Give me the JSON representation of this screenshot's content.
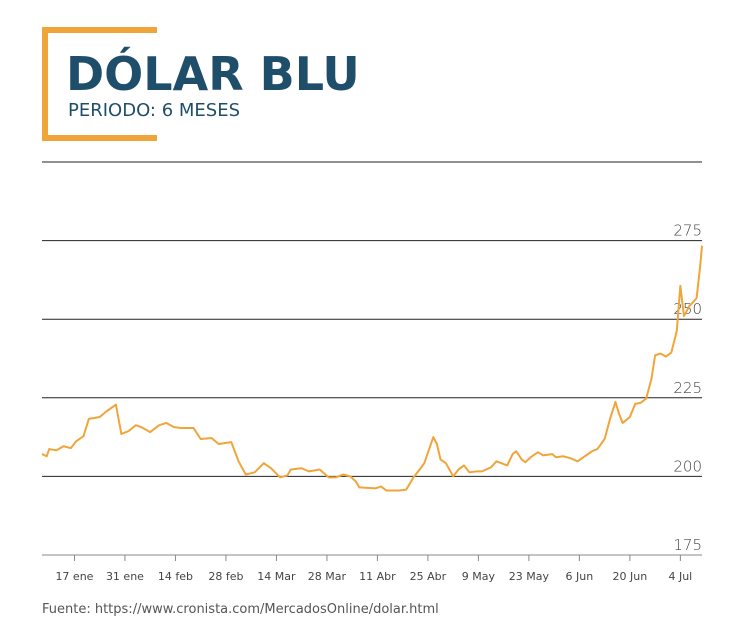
{
  "chart_data": {
    "type": "line",
    "title": "DÓLAR BLU",
    "subtitle": "PERIODO: 6 MESES",
    "source": "Fuente: https://www.cronista.com/MercadosOnline/dolar.html",
    "color": "#f0a53a",
    "x": [
      8,
      9.3,
      10,
      12,
      14,
      16,
      17.5,
      19.5,
      21,
      24,
      26,
      28.5,
      30,
      32,
      34,
      35.5,
      38,
      40.5,
      42.5,
      44.5,
      46.5,
      50,
      52,
      55,
      57,
      60.5,
      62.5,
      64.5,
      67,
      69.5,
      71.5,
      74,
      76,
      77,
      80,
      82,
      85,
      87.5,
      89.5,
      91.5,
      93.5,
      95,
      96,
      100.5,
      102,
      103.5,
      107,
      109,
      111,
      113,
      114,
      116.5,
      117.5,
      118.5,
      120,
      122,
      123.5,
      125,
      126.5,
      128.5,
      130,
      132.5,
      134,
      137,
      138.5,
      139.5,
      141,
      142,
      143.5,
      145.5,
      147,
      149.5,
      150.5,
      152.5,
      154.5,
      156.5,
      158.5,
      160.5,
      162,
      164,
      165.5,
      167,
      168,
      169,
      171,
      172.5,
      174,
      175.5,
      177,
      178,
      179.5,
      181,
      182.5,
      184,
      185,
      186,
      187.5,
      188.5,
      189.5,
      190.5,
      191
    ],
    "values": [
      207.1,
      206.4,
      208.7,
      208.3,
      209.6,
      209.0,
      211.2,
      212.8,
      218.3,
      218.9,
      220.8,
      222.8,
      213.5,
      214.4,
      216.3,
      215.7,
      214.1,
      216.3,
      217.0,
      215.7,
      215.4,
      215.4,
      211.9,
      212.2,
      210.3,
      210.9,
      204.8,
      200.6,
      201.3,
      204.2,
      202.6,
      199.7,
      200.3,
      202.2,
      202.6,
      201.6,
      202.2,
      199.7,
      199.7,
      200.6,
      200.0,
      198.4,
      196.5,
      196.2,
      196.8,
      195.5,
      195.5,
      195.8,
      199.7,
      202.6,
      204.2,
      212.5,
      210.3,
      205.4,
      204.2,
      200.0,
      202.2,
      203.5,
      201.3,
      201.6,
      201.6,
      202.9,
      204.8,
      203.5,
      207.1,
      208.0,
      205.4,
      204.5,
      206.1,
      207.7,
      206.7,
      207.1,
      206.1,
      206.4,
      205.8,
      204.8,
      206.4,
      208.0,
      208.7,
      211.9,
      218.3,
      223.7,
      219.9,
      217.0,
      218.9,
      223.1,
      223.4,
      224.7,
      231.1,
      238.5,
      239.1,
      238.1,
      239.4,
      246.2,
      260.6,
      251.0,
      254.2,
      255.4,
      256.7,
      267.0,
      273.4
    ],
    "xlim": [
      8,
      191
    ],
    "xticks": [
      {
        "value": 17,
        "label": "17 ene"
      },
      {
        "value": 31,
        "label": "31 ene"
      },
      {
        "value": 45,
        "label": "14 feb"
      },
      {
        "value": 59,
        "label": "28 feb"
      },
      {
        "value": 73,
        "label": "14 Mar"
      },
      {
        "value": 87,
        "label": "28 Mar"
      },
      {
        "value": 101,
        "label": "11 Abr"
      },
      {
        "value": 115,
        "label": "25 Abr"
      },
      {
        "value": 129,
        "label": "9 May"
      },
      {
        "value": 143,
        "label": "23 May"
      },
      {
        "value": 157,
        "label": "6 Jun"
      },
      {
        "value": 171,
        "label": "20 Jun"
      },
      {
        "value": 185,
        "label": "4 Jul"
      }
    ],
    "ylim": [
      175,
      300
    ],
    "yticks": [
      175,
      200,
      225,
      250,
      275
    ],
    "grid": true
  }
}
